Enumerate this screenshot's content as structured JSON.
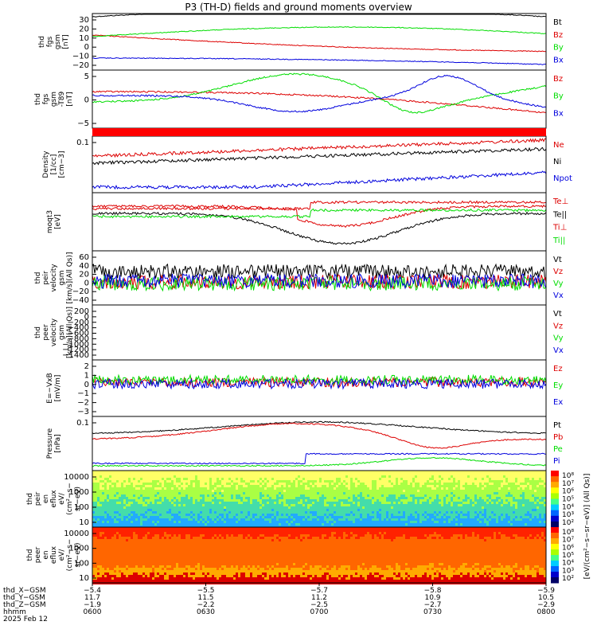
{
  "title": "P3 (TH-D) fields and ground moments overview",
  "colors": {
    "black": "#000000",
    "red": "#dd0000",
    "green": "#00dd00",
    "blue": "#0000dd",
    "bar": "#ff0000"
  },
  "chart_data": [
    {
      "type": "line",
      "id": "fgs",
      "ylabel": [
        "thd",
        "fgs",
        "gsm",
        "[nT]"
      ],
      "yticks": [
        "30",
        "20",
        "10",
        "0",
        "−10",
        "−20"
      ],
      "ylim": [
        -28,
        36
      ],
      "series": [
        {
          "name": "Bt",
          "color": "#000000"
        },
        {
          "name": "Bz",
          "color": "#dd0000"
        },
        {
          "name": "By",
          "color": "#00dd00"
        },
        {
          "name": "Bx",
          "color": "#0000dd"
        }
      ]
    },
    {
      "type": "line",
      "id": "fgs_dsl",
      "ylabel": [
        "thd",
        "fgs",
        "gsm",
        "-T89",
        "[nT]"
      ],
      "yticks": [
        "5",
        "0",
        "−5"
      ],
      "ylim": [
        -9,
        8
      ],
      "series": [
        {
          "name": "Bz",
          "color": "#dd0000"
        },
        {
          "name": "By",
          "color": "#00dd00"
        },
        {
          "name": "Bx",
          "color": "#0000dd"
        }
      ]
    },
    {
      "type": "line",
      "id": "density",
      "ylabel": [
        "Density",
        "[1/cc]",
        "[cm−3]"
      ],
      "yscale": "log",
      "yticks": [
        "0.1"
      ],
      "series": [
        {
          "name": "Ne",
          "color": "#dd0000"
        },
        {
          "name": "Ni",
          "color": "#000000"
        },
        {
          "name": "Npot",
          "color": "#0000dd"
        }
      ]
    },
    {
      "type": "line",
      "id": "temp",
      "ylabel": [
        "moqt3",
        "[eV]"
      ],
      "yscale": "log",
      "series": [
        {
          "name": "Te⊥",
          "color": "#dd0000"
        },
        {
          "name": "Te||",
          "color": "#000000"
        },
        {
          "name": "Ti⊥",
          "color": "#dd0000"
        },
        {
          "name": "Ti||",
          "color": "#00dd00"
        }
      ]
    },
    {
      "type": "line",
      "id": "vi",
      "ylabel": [
        "thd",
        "peir",
        "velocity",
        "gsm",
        "[km/s](All Qs)]"
      ],
      "yticks": [
        "60",
        "40",
        "20",
        "0",
        "−20",
        "−40"
      ],
      "ylim": [
        -55,
        75
      ],
      "series": [
        {
          "name": "Vt",
          "color": "#000000"
        },
        {
          "name": "Vz",
          "color": "#dd0000"
        },
        {
          "name": "Vy",
          "color": "#00dd00"
        },
        {
          "name": "Vx",
          "color": "#0000dd"
        }
      ]
    },
    {
      "type": "line",
      "id": "ve",
      "ylabel": [
        "thd",
        "peer",
        "velocity",
        "gsm",
        "[km/s](All Qs)]"
      ],
      "yticks": [
        "200",
        "0",
        "−200",
        "−400",
        "−600",
        "−800",
        "−1000",
        "−1200",
        "−1400"
      ],
      "ylim": [
        -1450,
        220
      ],
      "series": [
        {
          "name": "Vt",
          "color": "#000000"
        },
        {
          "name": "Vz",
          "color": "#dd0000"
        },
        {
          "name": "Vy",
          "color": "#00dd00"
        },
        {
          "name": "Vx",
          "color": "#0000dd"
        }
      ]
    },
    {
      "type": "line",
      "id": "efield",
      "ylabel": [
        "E=−VxB",
        "[mV/m]"
      ],
      "yticks": [
        "2",
        "1",
        "0",
        "−1",
        "−2",
        "−3"
      ],
      "ylim": [
        -3.3,
        2.8
      ],
      "series": [
        {
          "name": "Ez",
          "color": "#dd0000"
        },
        {
          "name": "Ey",
          "color": "#00dd00"
        },
        {
          "name": "Ex",
          "color": "#0000dd"
        }
      ]
    },
    {
      "type": "line",
      "id": "pressure",
      "ylabel": [
        "Pressure",
        "[nPa]"
      ],
      "yscale": "log",
      "yticks": [
        "0.1"
      ],
      "series": [
        {
          "name": "Pt",
          "color": "#000000"
        },
        {
          "name": "Pb",
          "color": "#dd0000"
        },
        {
          "name": "Pe",
          "color": "#00dd00"
        },
        {
          "name": "Pi",
          "color": "#0000dd"
        }
      ]
    },
    {
      "type": "heatmap",
      "id": "ion_spec",
      "ylabel": [
        "thd",
        "peir",
        "en",
        "eflux",
        "eV/",
        "(cm²−s−",
        "sr−eV)"
      ],
      "yscale": "log",
      "yticks": [
        "10000",
        "1000",
        "100",
        "10"
      ]
    },
    {
      "type": "heatmap",
      "id": "ele_spec",
      "ylabel": [
        "thd",
        "peer",
        "en",
        "eflux",
        "eV/",
        "(cm²−s−",
        "sr−eV)"
      ],
      "yscale": "log",
      "yticks": [
        "10000",
        "1000",
        "100",
        "10"
      ]
    }
  ],
  "colorbar": {
    "ticks_top": [
      "10⁸",
      "10⁷",
      "10⁶",
      "10⁵",
      "10⁴",
      "10³",
      "10²"
    ],
    "ticks_bottom": [
      "10⁸",
      "10⁷",
      "10⁶",
      "10⁵",
      "10⁴",
      "10³",
      "10²"
    ],
    "label": "[eV/(cm²−s−sr−eV)] (All Qs)]"
  },
  "xaxis": {
    "rows": [
      {
        "label": "thd_X−GSM",
        "values": [
          "−5.4",
          "−5.5",
          "−5.7",
          "−5.8",
          "−5.9"
        ]
      },
      {
        "label": "thd_Y−GSM",
        "values": [
          "11.7",
          "11.5",
          "11.2",
          "10.9",
          "10.5"
        ]
      },
      {
        "label": "thd_Z−GSM",
        "values": [
          "−1.9",
          "−2.2",
          "−2.5",
          "−2.7",
          "−2.9"
        ]
      },
      {
        "label": "hhmm",
        "values": [
          "0600",
          "0630",
          "0700",
          "0730",
          "0800"
        ]
      }
    ],
    "date": "2025 Feb 12"
  }
}
